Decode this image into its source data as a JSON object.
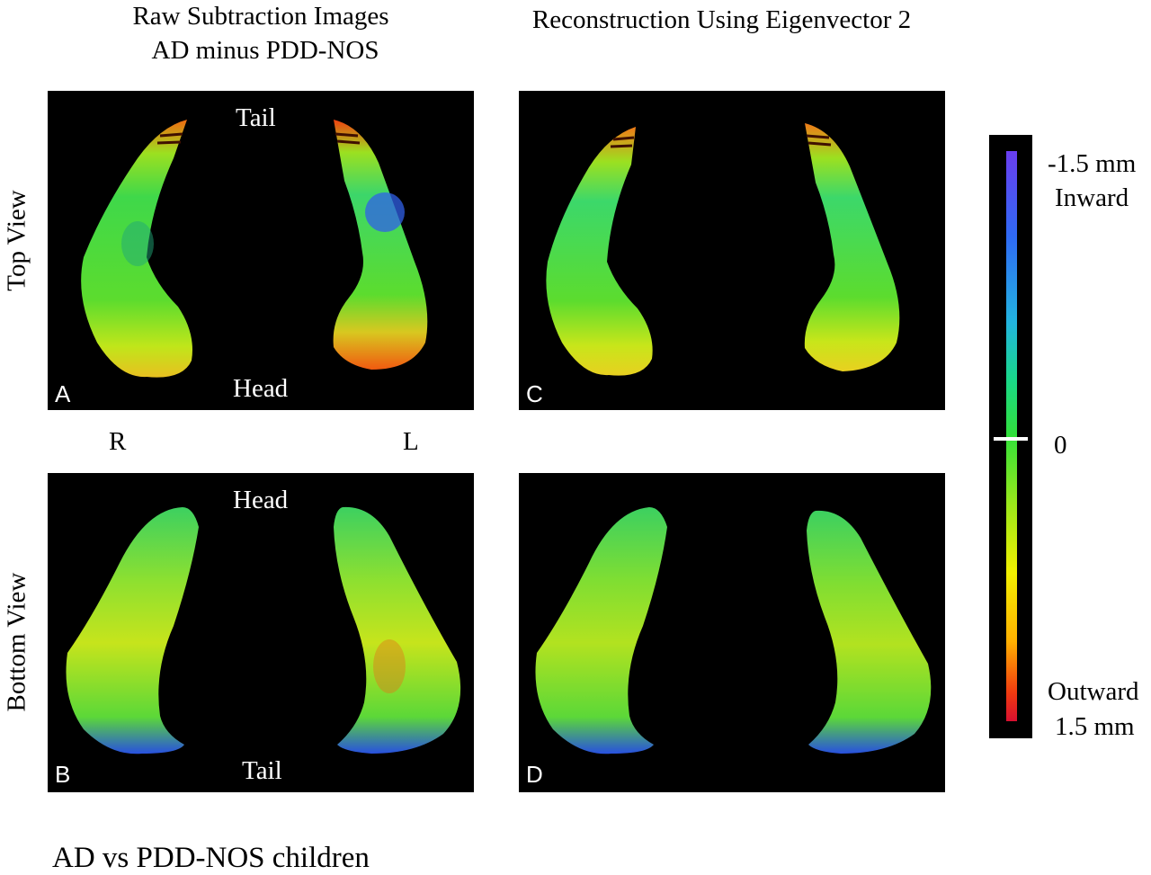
{
  "header": {
    "left_line1": "Raw Subtraction Images",
    "left_line2": "AD minus PDD-NOS",
    "right": "Reconstruction  Using Eigenvector 2"
  },
  "rows": {
    "top": "Top View",
    "bottom": "Bottom View"
  },
  "panels": {
    "A": {
      "letter": "A",
      "upper": "Tail",
      "lower": "Head"
    },
    "B": {
      "letter": "B",
      "upper": "Head",
      "lower": "Tail"
    },
    "C": {
      "letter": "C"
    },
    "D": {
      "letter": "D"
    }
  },
  "sides": {
    "right": "R",
    "left": "L"
  },
  "colorbar": {
    "top_value": "-1.5 mm",
    "top_label": "Inward",
    "mid_value": "0",
    "bottom_label": "Outward",
    "bottom_value": "1.5 mm",
    "colors": [
      "#6a3ef0",
      "#22b4e0",
      "#32e03a",
      "#f2f000",
      "#d81030"
    ]
  },
  "caption": "AD vs PDD-NOS children"
}
